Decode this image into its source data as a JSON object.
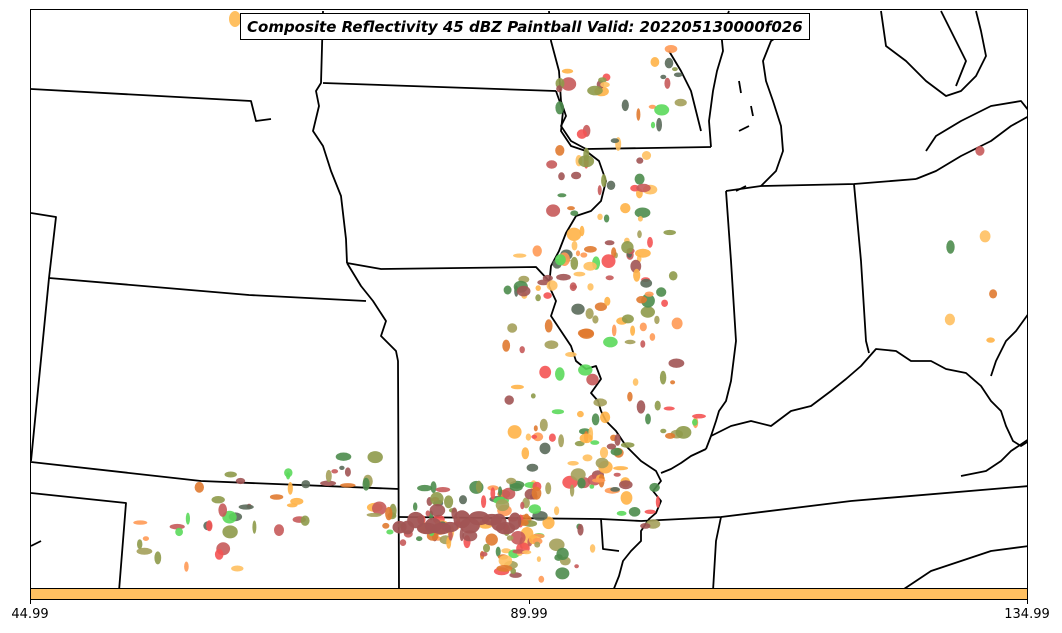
{
  "title": "Composite Reflectivity 45 dBZ Paintball Valid: 202205130000f026",
  "colorbar": {
    "color": "#ffc061",
    "ticks": [
      "44.99",
      "89.99",
      "134.99"
    ]
  },
  "colors": {
    "border": "#000000",
    "member_colors": [
      "#a15454",
      "#c65a5a",
      "#f45353",
      "#ff9a55",
      "#ffb347",
      "#ffc061",
      "#a4a05a",
      "#8e9a4a",
      "#5bd95b",
      "#4c8c4c",
      "#5a6a5a",
      "#e07a30"
    ]
  }
}
